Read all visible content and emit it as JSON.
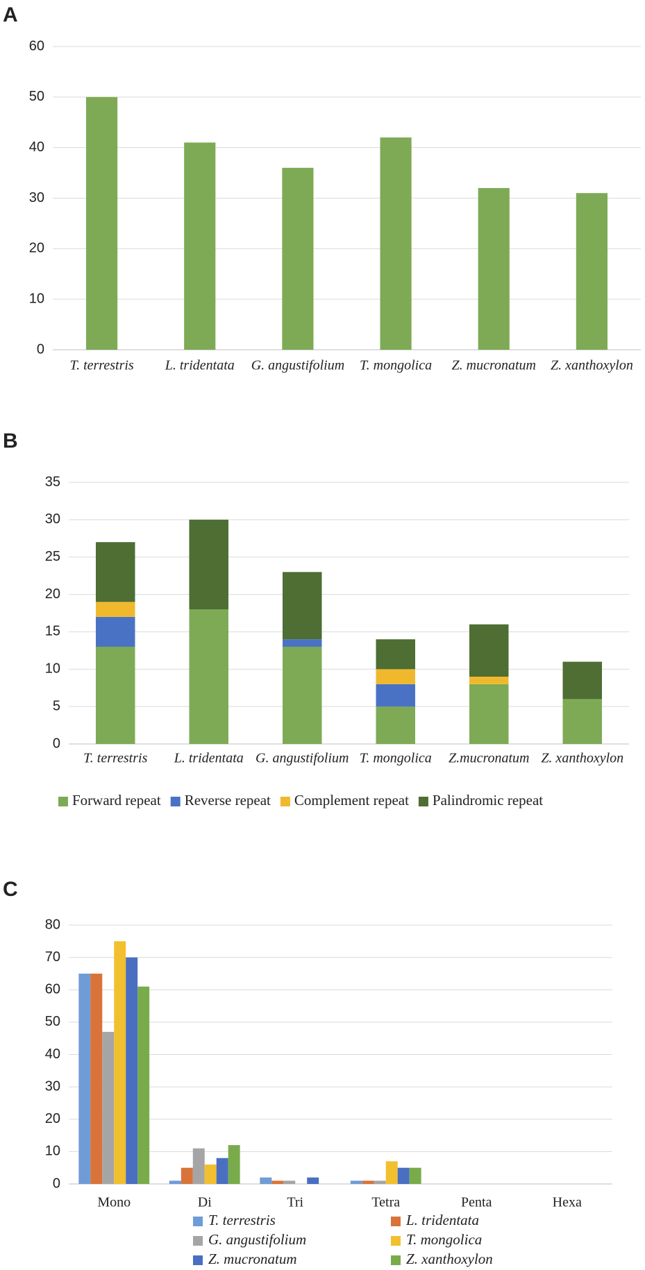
{
  "chart_data": [
    {
      "type": "bar",
      "panel": "A",
      "categories": [
        "T. terrestris",
        "L. tridentata",
        "G. angustifolium",
        "T. mongolica",
        "Z. mucronatum",
        "Z. xanthoxylon"
      ],
      "values": [
        50,
        41,
        36,
        42,
        32,
        31
      ],
      "color": "#7eaa55",
      "ylim": [
        0,
        60
      ],
      "yticks": [
        0,
        10,
        20,
        30,
        40,
        50,
        60
      ],
      "grid": true
    },
    {
      "type": "stacked_bar",
      "panel": "B",
      "categories": [
        "T. terrestris",
        "L. tridentata",
        "G. angustifolium",
        "T. mongolica",
        "Z.mucronatum",
        "Z. xanthoxylon"
      ],
      "series": [
        {
          "name": "Forward repeat",
          "color": "#7eaa55",
          "values": [
            13,
            18,
            13,
            5,
            8,
            6
          ]
        },
        {
          "name": "Reverse repeat",
          "color": "#4a72c4",
          "values": [
            4,
            0,
            1,
            3,
            0,
            0
          ]
        },
        {
          "name": "Complement repeat",
          "color": "#f0b92d",
          "values": [
            2,
            0,
            0,
            2,
            1,
            0
          ]
        },
        {
          "name": "Palindromic repeat",
          "color": "#4e6e33",
          "values": [
            8,
            12,
            9,
            4,
            7,
            5
          ]
        }
      ],
      "ylim": [
        0,
        35
      ],
      "yticks": [
        0,
        5,
        10,
        15,
        20,
        25,
        30,
        35
      ],
      "grid": true,
      "legend": "bottom"
    },
    {
      "type": "grouped_bar",
      "panel": "C",
      "categories": [
        "Mono",
        "Di",
        "Tri",
        "Tetra",
        "Penta",
        "Hexa"
      ],
      "series": [
        {
          "name": "T. terrestris",
          "color": "#6f9bd6",
          "values": [
            65,
            1,
            2,
            1,
            0,
            0
          ]
        },
        {
          "name": "L. tridentata",
          "color": "#d9733a",
          "values": [
            65,
            5,
            1,
            1,
            0,
            0
          ]
        },
        {
          "name": "G. angustifolium",
          "color": "#a5a5a5",
          "values": [
            47,
            11,
            1,
            1,
            0,
            0
          ]
        },
        {
          "name": "T. mongolica",
          "color": "#f2bf2e",
          "values": [
            75,
            6,
            0,
            7,
            0,
            0
          ]
        },
        {
          "name": "Z. mucronatum",
          "color": "#4a6fc1",
          "values": [
            70,
            8,
            2,
            5,
            0,
            0
          ]
        },
        {
          "name": "Z. xanthoxylon",
          "color": "#79ab4b",
          "values": [
            61,
            12,
            0,
            5,
            0,
            0
          ]
        }
      ],
      "ylim": [
        0,
        80
      ],
      "yticks": [
        0,
        10,
        20,
        30,
        40,
        50,
        60,
        70,
        80
      ],
      "grid": true,
      "legend": "bottom"
    }
  ]
}
